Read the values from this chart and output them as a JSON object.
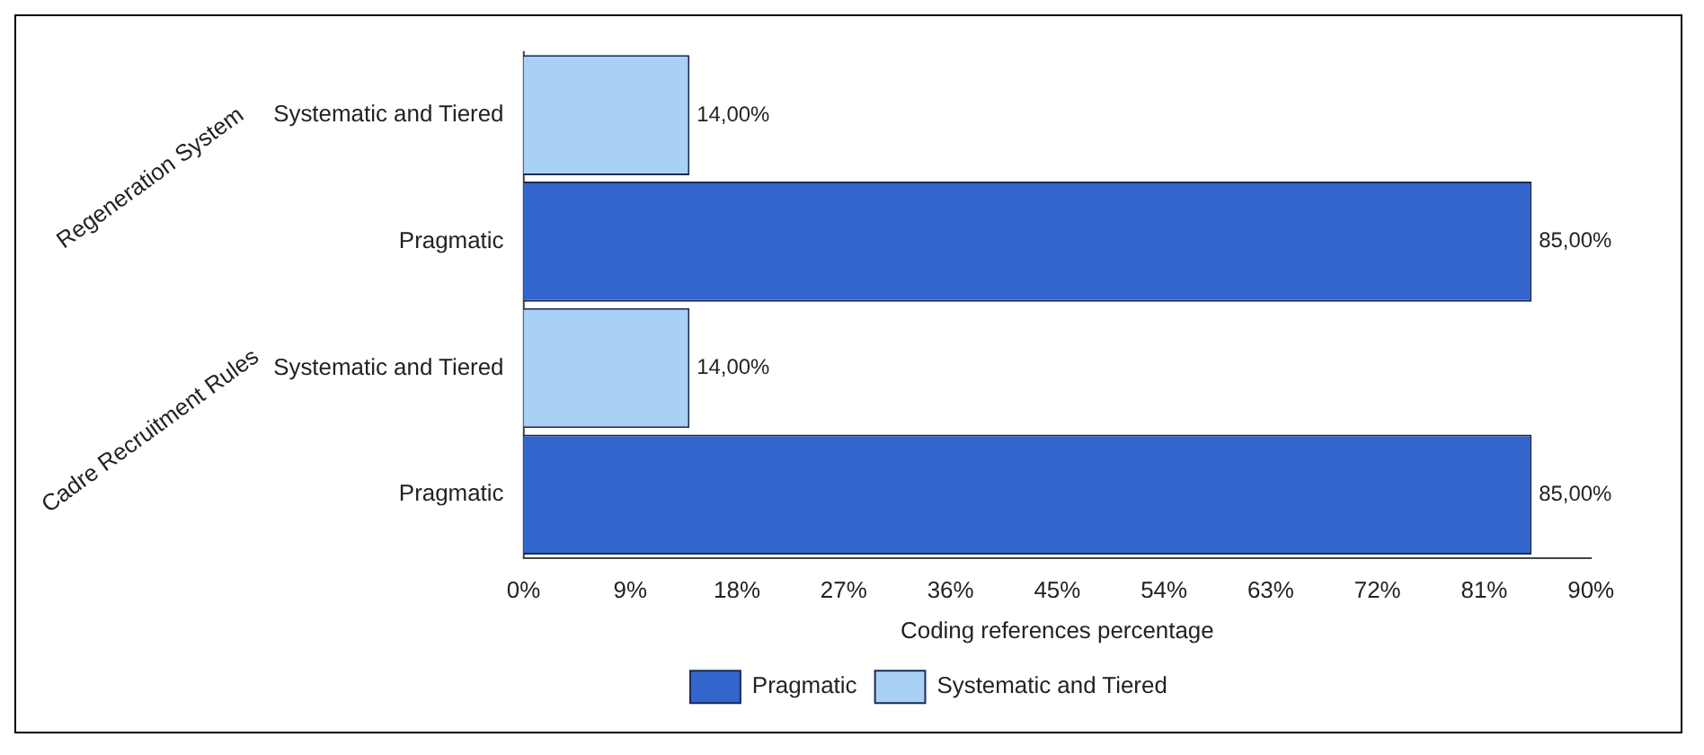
{
  "chart_data": {
    "type": "bar",
    "orientation": "horizontal",
    "stacked": true,
    "categories": [
      "Systematic and Tiered",
      "Pragmatic",
      "Systematic and Tiered",
      "Pragmatic"
    ],
    "series": [
      {
        "name": "Pragmatic",
        "color": "#3366cc",
        "values": [
          null,
          85,
          null,
          85
        ],
        "value_labels": [
          null,
          "85,00%",
          null,
          "85,00%"
        ]
      },
      {
        "name": "Systematic and Tiered",
        "color": "#a9d0f5",
        "values": [
          14,
          null,
          14,
          null
        ],
        "value_labels": [
          "14,00%",
          null,
          "14,00%",
          null
        ]
      }
    ],
    "xlim": [
      0,
      90
    ],
    "xticks": [
      {
        "value": 0,
        "label": "0%"
      },
      {
        "value": 9,
        "label": "9%"
      },
      {
        "value": 18,
        "label": "18%"
      },
      {
        "value": 27,
        "label": "27%"
      },
      {
        "value": 36,
        "label": "36%"
      },
      {
        "value": 45,
        "label": "45%"
      },
      {
        "value": 54,
        "label": "54%"
      },
      {
        "value": 63,
        "label": "63%"
      },
      {
        "value": 72,
        "label": "72%"
      },
      {
        "value": 81,
        "label": "81%"
      },
      {
        "value": 90,
        "label": "90%"
      }
    ],
    "xlabel": "Coding references percentage",
    "annotations": [
      "Regeneration System",
      "Cadre Recruitment Rules"
    ],
    "legend": "bottom",
    "grid": false
  }
}
